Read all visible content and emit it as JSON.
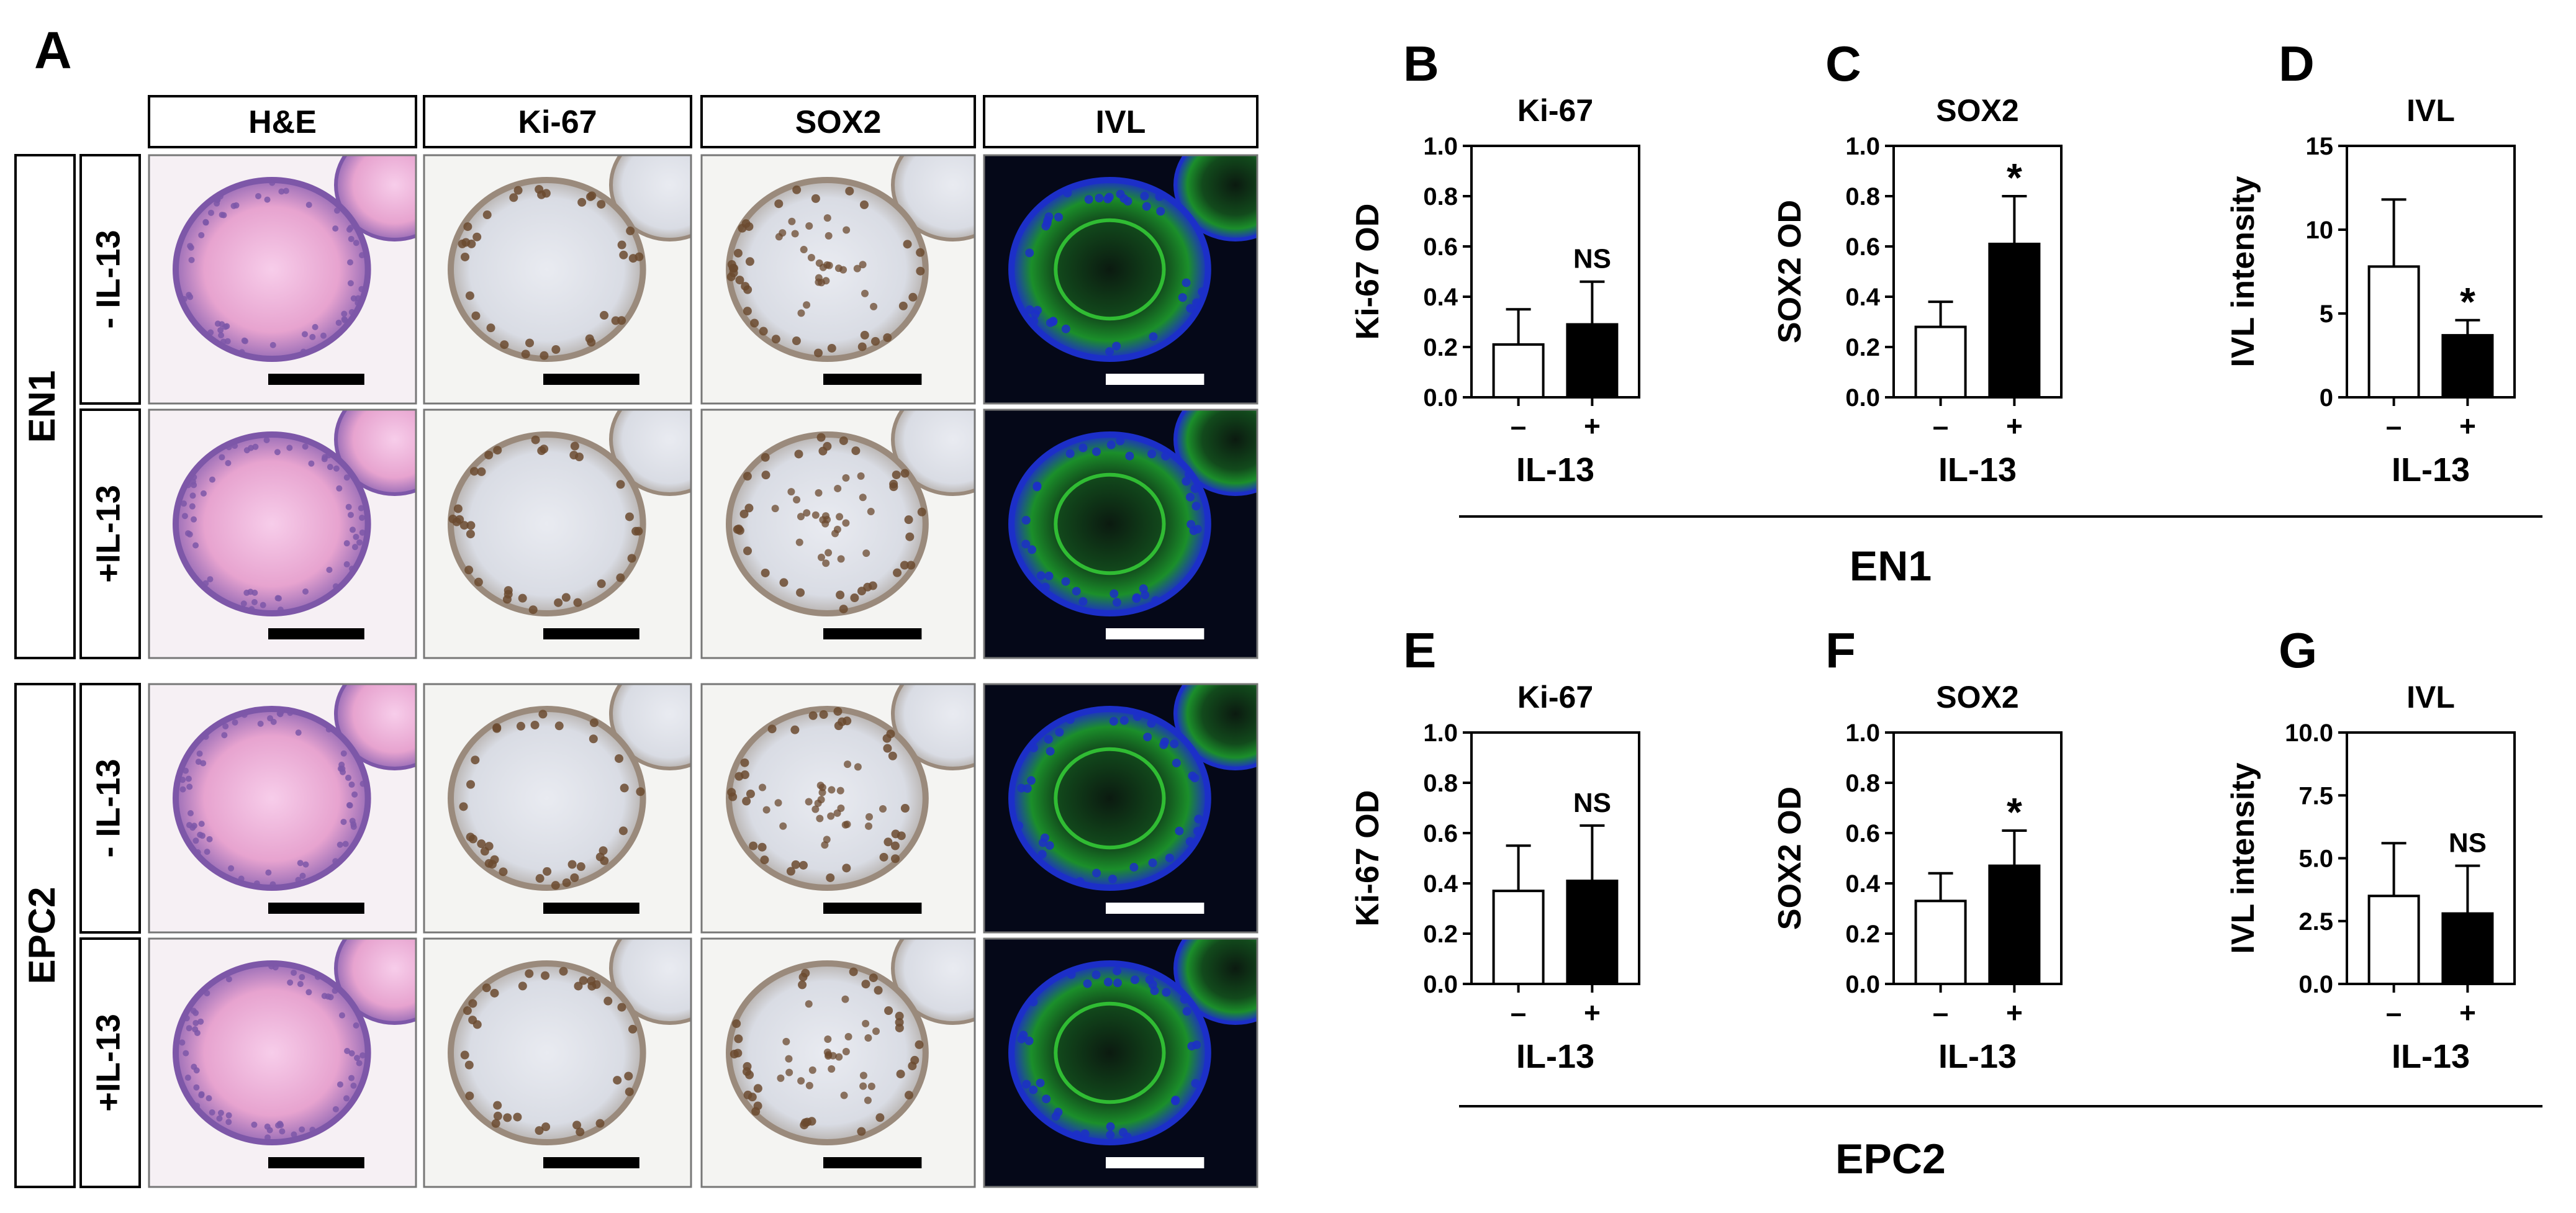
{
  "panel_a": {
    "letter": "A",
    "columns": [
      "H&E",
      "Ki-67",
      "SOX2",
      "IVL"
    ],
    "cell_lines": [
      {
        "name": "EN1",
        "conditions": [
          "- IL-13",
          "+IL-13"
        ]
      },
      {
        "name": "EPC2",
        "conditions": [
          "- IL-13",
          "+IL-13"
        ]
      }
    ],
    "stain_colors": {
      "he_background": "#f6f0f4",
      "he_tissue": "#e7a3cf",
      "he_nuclei": "#7d57a8",
      "ihc_background": "#f4f4f2",
      "ihc_tissue": "#d9dce4",
      "ihc_nuclei": "#6b4a2f",
      "if_background": "#050818",
      "if_nuclei": "#1c2fc8",
      "if_signal": "#38d83a",
      "scale_bar_dark": "#000000",
      "scale_bar_light": "#ffffff"
    }
  },
  "group_labels": {
    "en1": "EN1",
    "epc2": "EPC2"
  },
  "chart_data": [
    {
      "letter": "B",
      "type": "bar",
      "title": "Ki-67",
      "ylabel": "Ki-67 OD",
      "xlabel": "IL-13",
      "categories": [
        "–",
        "+"
      ],
      "values": [
        0.21,
        0.29
      ],
      "errors": [
        0.14,
        0.17
      ],
      "ylim": [
        0,
        1.0
      ],
      "yticks": [
        "0.0",
        "0.2",
        "0.4",
        "0.6",
        "0.8",
        "1.0"
      ],
      "annotation": "NS"
    },
    {
      "letter": "C",
      "type": "bar",
      "title": "SOX2",
      "ylabel": "SOX2 OD",
      "xlabel": "IL-13",
      "categories": [
        "–",
        "+"
      ],
      "values": [
        0.28,
        0.61
      ],
      "errors": [
        0.1,
        0.19
      ],
      "ylim": [
        0,
        1.0
      ],
      "yticks": [
        "0.0",
        "0.2",
        "0.4",
        "0.6",
        "0.8",
        "1.0"
      ],
      "annotation": "*"
    },
    {
      "letter": "D",
      "type": "bar",
      "title": "IVL",
      "ylabel": "IVL intensity",
      "xlabel": "IL-13",
      "categories": [
        "–",
        "+"
      ],
      "values": [
        7.8,
        3.7
      ],
      "errors": [
        4.0,
        0.9
      ],
      "ylim": [
        0,
        15
      ],
      "yticks": [
        "0",
        "5",
        "10",
        "15"
      ],
      "annotation": "*"
    },
    {
      "letter": "E",
      "type": "bar",
      "title": "Ki-67",
      "ylabel": "Ki-67 OD",
      "xlabel": "IL-13",
      "categories": [
        "–",
        "+"
      ],
      "values": [
        0.37,
        0.41
      ],
      "errors": [
        0.18,
        0.22
      ],
      "ylim": [
        0,
        1.0
      ],
      "yticks": [
        "0.0",
        "0.2",
        "0.4",
        "0.6",
        "0.8",
        "1.0"
      ],
      "annotation": "NS"
    },
    {
      "letter": "F",
      "type": "bar",
      "title": "SOX2",
      "ylabel": "SOX2 OD",
      "xlabel": "IL-13",
      "categories": [
        "–",
        "+"
      ],
      "values": [
        0.33,
        0.47
      ],
      "errors": [
        0.11,
        0.14
      ],
      "ylim": [
        0,
        1.0
      ],
      "yticks": [
        "0.0",
        "0.2",
        "0.4",
        "0.6",
        "0.8",
        "1.0"
      ],
      "annotation": "*"
    },
    {
      "letter": "G",
      "type": "bar",
      "title": "IVL",
      "ylabel": "IVL intensity",
      "xlabel": "IL-13",
      "categories": [
        "–",
        "+"
      ],
      "values": [
        3.5,
        2.8
      ],
      "errors": [
        2.1,
        1.9
      ],
      "ylim": [
        0,
        10
      ],
      "yticks": [
        "0.0",
        "2.5",
        "5.0",
        "7.5",
        "10.0"
      ],
      "annotation": "NS"
    }
  ]
}
